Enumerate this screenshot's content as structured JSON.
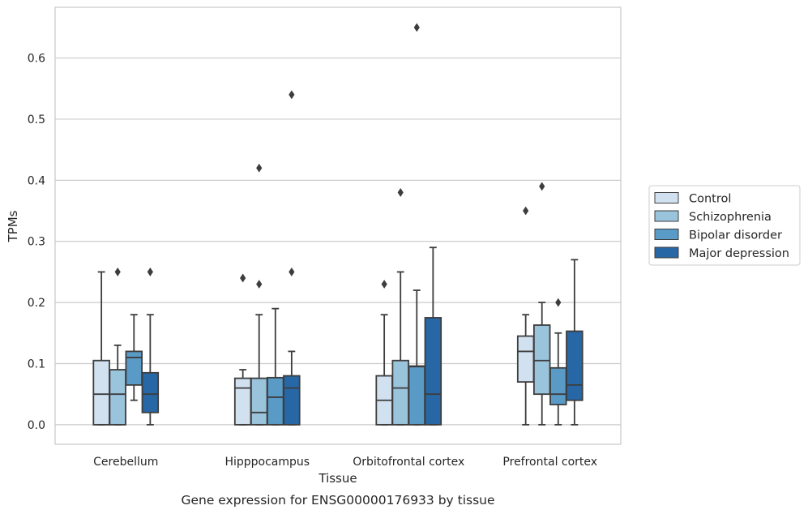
{
  "chart_data": {
    "type": "box",
    "title": "",
    "caption": "Gene expression for ENSG00000176933 by tissue",
    "xlabel": "Tissue",
    "ylabel": "TPMs",
    "ylim": [
      -0.032,
      0.683
    ],
    "yticks": [
      0.0,
      0.1,
      0.2,
      0.3,
      0.4,
      0.5,
      0.6
    ],
    "ytick_labels": [
      "0.0",
      "0.1",
      "0.2",
      "0.3",
      "0.4",
      "0.5",
      "0.6"
    ],
    "grid": "horizontal",
    "legend_position": "right",
    "categories": [
      "Cerebellum",
      "Hipppocampus",
      "Orbitofrontal cortex",
      "Prefrontal cortex"
    ],
    "series": [
      {
        "name": "Control",
        "color": "#d1e1f0",
        "boxes": [
          {
            "whislo": 0.0,
            "q1": 0.0,
            "med": 0.05,
            "q3": 0.105,
            "whishi": 0.25,
            "fliers": []
          },
          {
            "whislo": 0.0,
            "q1": 0.0,
            "med": 0.06,
            "q3": 0.076,
            "whishi": 0.09,
            "fliers": [
              0.24
            ]
          },
          {
            "whislo": 0.0,
            "q1": 0.0,
            "med": 0.04,
            "q3": 0.08,
            "whishi": 0.18,
            "fliers": [
              0.23
            ]
          },
          {
            "whislo": 0.0,
            "q1": 0.07,
            "med": 0.12,
            "q3": 0.145,
            "whishi": 0.18,
            "fliers": [
              0.35
            ]
          }
        ]
      },
      {
        "name": "Schizophrenia",
        "color": "#9ac3dc",
        "boxes": [
          {
            "whislo": 0.0,
            "q1": 0.0,
            "med": 0.05,
            "q3": 0.09,
            "whishi": 0.13,
            "fliers": [
              0.25
            ]
          },
          {
            "whislo": 0.0,
            "q1": 0.0,
            "med": 0.02,
            "q3": 0.076,
            "whishi": 0.18,
            "fliers": [
              0.23,
              0.42
            ]
          },
          {
            "whislo": 0.0,
            "q1": 0.0,
            "med": 0.06,
            "q3": 0.105,
            "whishi": 0.25,
            "fliers": [
              0.38
            ]
          },
          {
            "whislo": 0.0,
            "q1": 0.05,
            "med": 0.105,
            "q3": 0.163,
            "whishi": 0.2,
            "fliers": [
              0.39
            ]
          }
        ]
      },
      {
        "name": "Bipolar disorder",
        "color": "#5a9ac6",
        "boxes": [
          {
            "whislo": 0.04,
            "q1": 0.065,
            "med": 0.11,
            "q3": 0.12,
            "whishi": 0.18,
            "fliers": []
          },
          {
            "whislo": 0.0,
            "q1": 0.0,
            "med": 0.045,
            "q3": 0.077,
            "whishi": 0.19,
            "fliers": []
          },
          {
            "whislo": 0.0,
            "q1": 0.0,
            "med": 0.095,
            "q3": 0.096,
            "whishi": 0.22,
            "fliers": [
              0.65
            ]
          },
          {
            "whislo": 0.0,
            "q1": 0.033,
            "med": 0.05,
            "q3": 0.093,
            "whishi": 0.15,
            "fliers": [
              0.2
            ]
          }
        ]
      },
      {
        "name": "Major depression",
        "color": "#2767a6",
        "boxes": [
          {
            "whislo": 0.0,
            "q1": 0.02,
            "med": 0.05,
            "q3": 0.085,
            "whishi": 0.18,
            "fliers": [
              0.25
            ]
          },
          {
            "whislo": 0.0,
            "q1": 0.0,
            "med": 0.06,
            "q3": 0.08,
            "whishi": 0.12,
            "fliers": [
              0.25,
              0.54
            ]
          },
          {
            "whislo": 0.0,
            "q1": 0.0,
            "med": 0.05,
            "q3": 0.175,
            "whishi": 0.29,
            "fliers": []
          },
          {
            "whislo": 0.0,
            "q1": 0.04,
            "med": 0.065,
            "q3": 0.153,
            "whishi": 0.27,
            "fliers": []
          }
        ]
      }
    ]
  }
}
